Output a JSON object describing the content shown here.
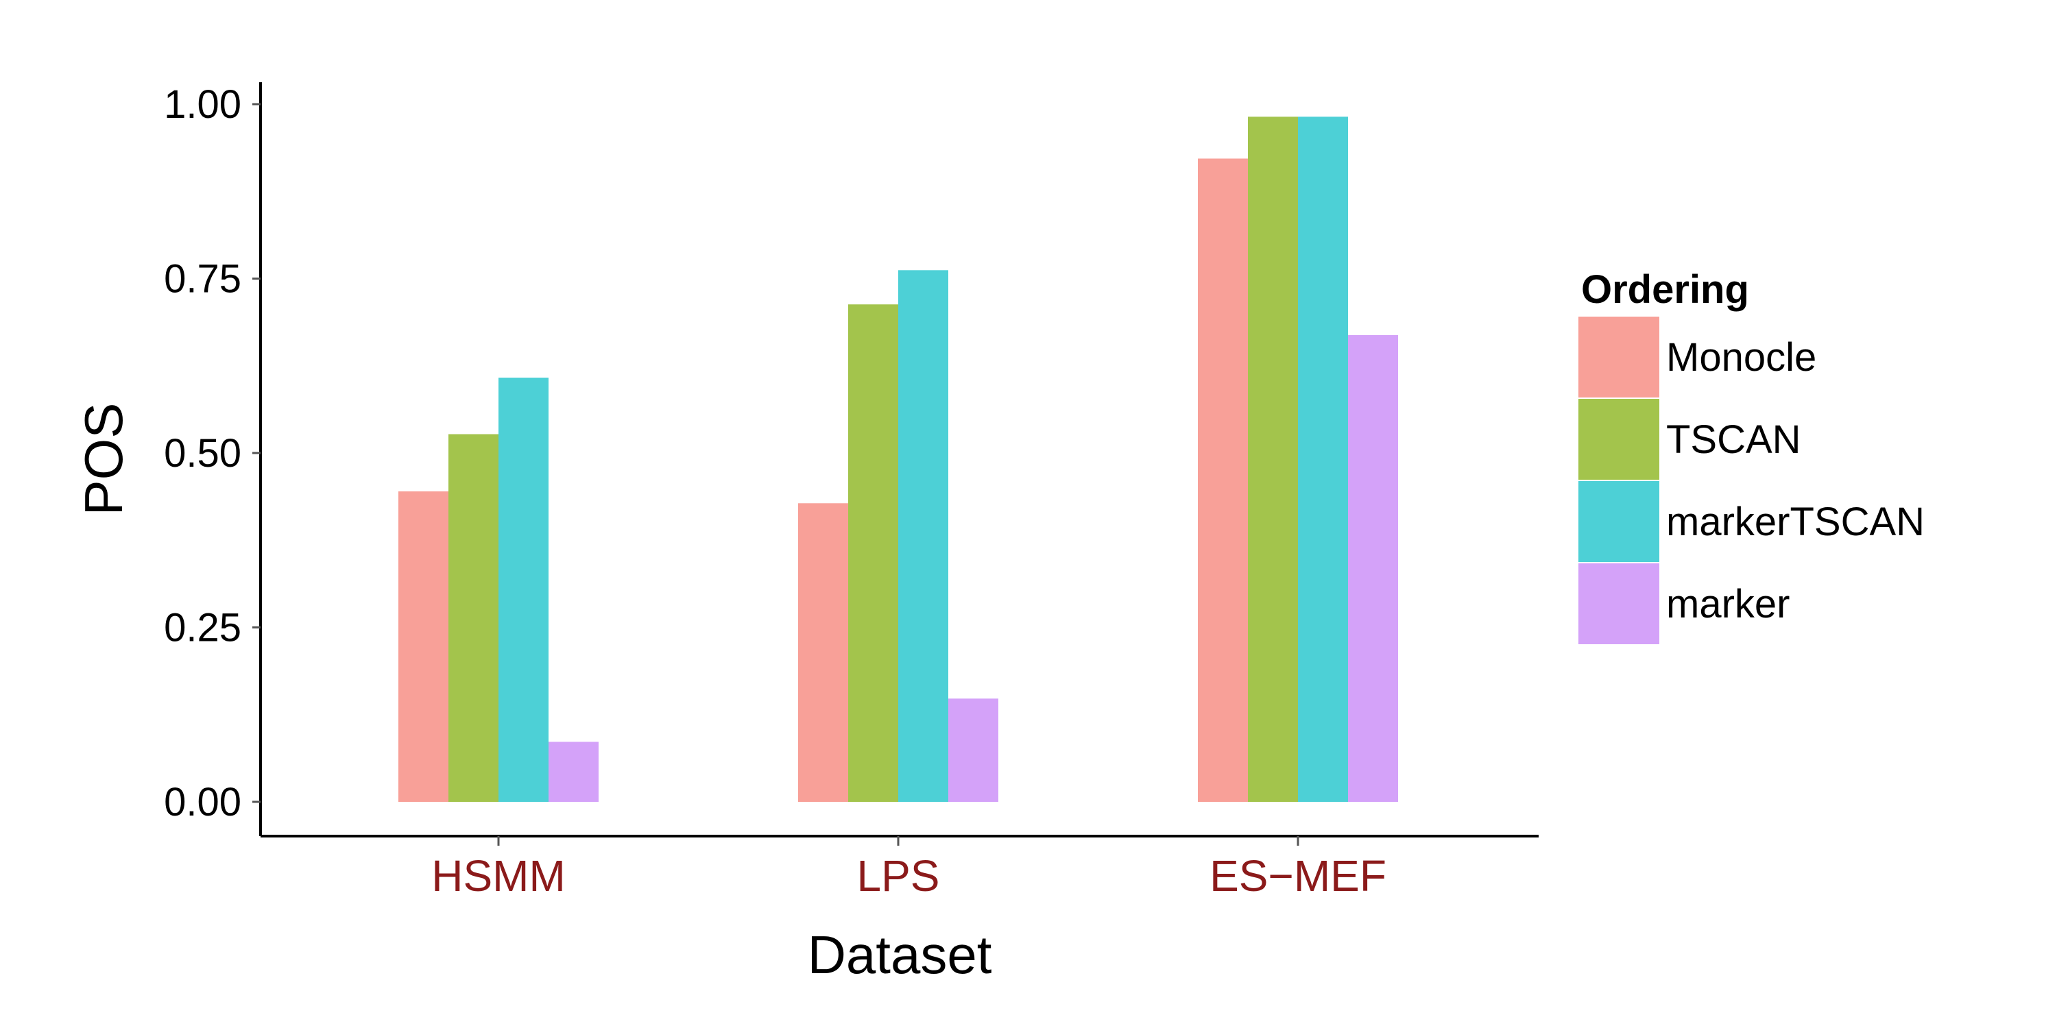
{
  "chart_data": {
    "type": "bar",
    "title": "",
    "xlabel": "Dataset",
    "ylabel": "POS",
    "categories": [
      "HSMM",
      "LPS",
      "ES−MEF"
    ],
    "category_label_color": "#8B1A1A",
    "ylim": [
      0,
      1
    ],
    "yticks": [
      0,
      0.25,
      0.5,
      0.75,
      1.0
    ],
    "ytick_labels": [
      "0.00",
      "0.25",
      "0.50",
      "0.75",
      "1.00"
    ],
    "grid": false,
    "legend": {
      "title": "Ordering",
      "position": "right"
    },
    "series": [
      {
        "name": "Monocle",
        "color": "#F8A098",
        "values": [
          0.445,
          0.428,
          0.922
        ]
      },
      {
        "name": "TSCAN",
        "color": "#A3C44C",
        "values": [
          0.527,
          0.713,
          0.982
        ]
      },
      {
        "name": "markerTSCAN",
        "color": "#4DD0D6",
        "values": [
          0.608,
          0.762,
          0.982
        ]
      },
      {
        "name": "marker",
        "color": "#D4A2F9",
        "values": [
          0.086,
          0.148,
          0.669
        ]
      }
    ]
  }
}
